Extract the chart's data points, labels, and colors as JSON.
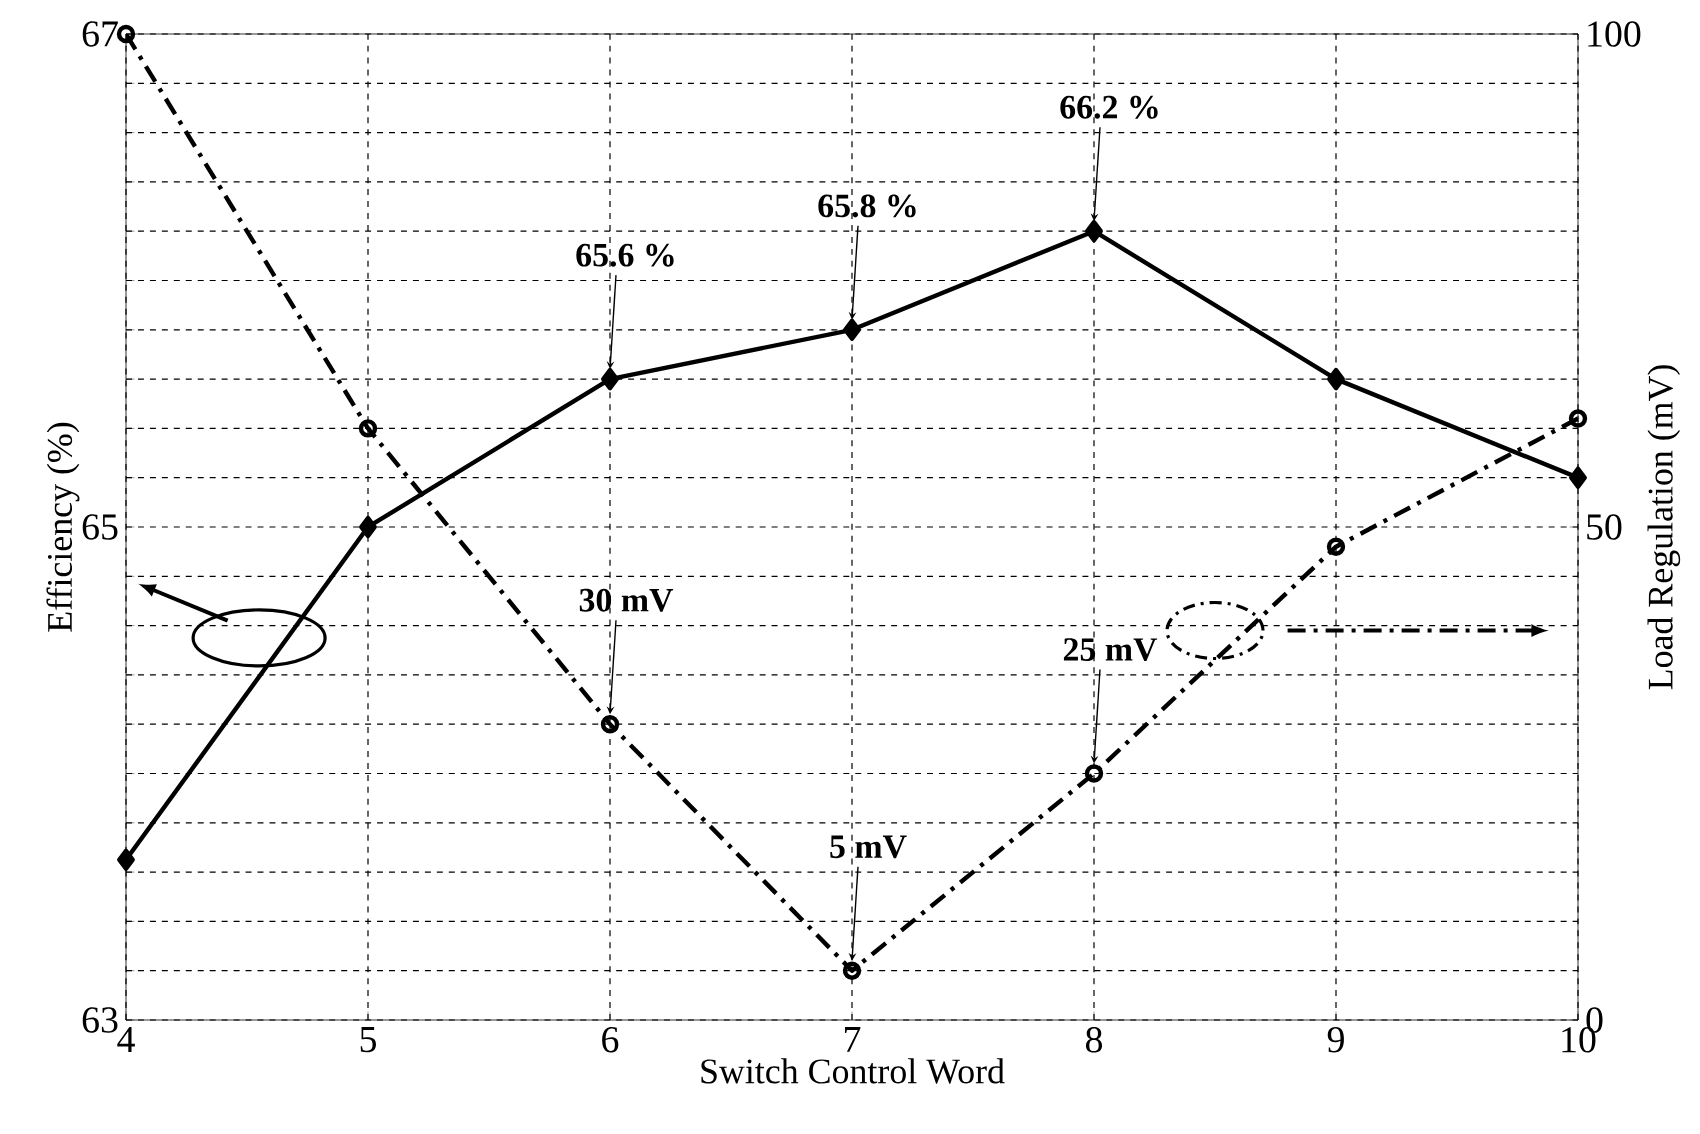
{
  "chart_data": {
    "type": "line",
    "xlabel": "Switch Control Word",
    "ylabel": "Efficiency (%)",
    "y2label": "Load Regulation (mV)",
    "x": [
      4,
      5,
      6,
      7,
      8,
      9,
      10
    ],
    "series": [
      {
        "color": "#000000",
        "marker": "diamond",
        "line_style": "solid",
        "values": [
          63.65,
          65.0,
          65.6,
          65.8,
          66.2,
          65.6,
          65.2
        ]
      },
      {
        "color": "#000000",
        "marker": "circle",
        "line_style": "dashdot",
        "axis": "y2",
        "values": [
          100,
          60,
          30,
          5,
          25,
          48,
          61
        ],
        "value_labels": [
          null,
          null,
          "30 mV",
          "5 mV",
          "25 mV",
          null,
          null
        ]
      }
    ],
    "xlim": [
      4,
      10
    ],
    "xticks": [
      4,
      5,
      6,
      7,
      8,
      9,
      10
    ],
    "ylim": [
      63,
      67
    ],
    "yticks": [
      63,
      {
        "value": 63.2,
        "label": null
      },
      {
        "value": 63.4,
        "label": null
      },
      {
        "value": 63.6,
        "label": null
      },
      {
        "value": 63.8,
        "label": null
      },
      {
        "value": 64,
        "label": null
      },
      {
        "value": 64.2,
        "label": null
      },
      {
        "value": 64.4,
        "label": null
      },
      {
        "value": 64.6,
        "label": null
      },
      {
        "value": 64.8,
        "label": null
      },
      65,
      {
        "value": 65.2,
        "label": null
      },
      {
        "value": 65.4,
        "label": null
      },
      {
        "value": 65.6,
        "label": null
      },
      {
        "value": 65.8,
        "label": null
      },
      {
        "value": 66,
        "label": null
      },
      {
        "value": 66.2,
        "label": null
      },
      {
        "value": 66.4,
        "label": null
      },
      {
        "value": 66.6,
        "label": null
      },
      {
        "value": 66.8,
        "label": null
      },
      67
    ],
    "y2lim": [
      0,
      100
    ],
    "y2ticks": [
      0,
      50,
      100
    ],
    "grid": true,
    "annotations": [
      {
        "text": "65.6 %",
        "x": 6,
        "y": 65.6
      },
      {
        "text": "65.8 %",
        "x": 7,
        "y": 65.8
      },
      {
        "text": "66.2 %",
        "x": 8,
        "y": 66.2
      }
    ]
  }
}
